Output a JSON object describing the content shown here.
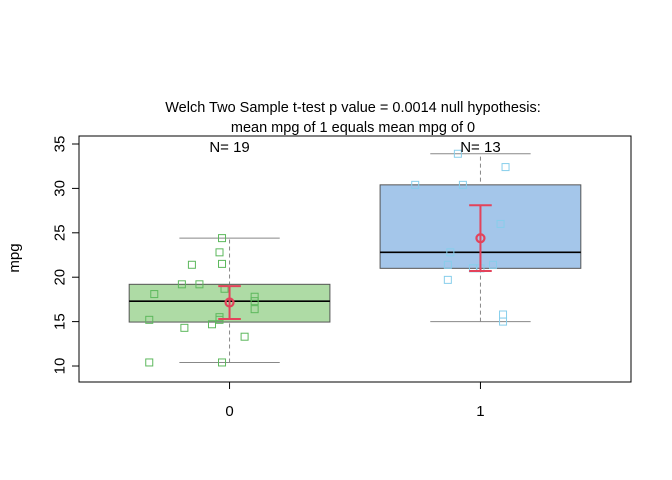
{
  "chart_data": {
    "type": "box",
    "title_line1": "Welch Two Sample t-test  p value =  0.0014  null hypothesis:",
    "title_line2": "mean mpg of  1 equals mean mpg of  0",
    "xlabel": "",
    "ylabel": "mpg",
    "categories": [
      "0",
      "1"
    ],
    "ylim": [
      8.2,
      35.9
    ],
    "yticks": [
      10,
      15,
      20,
      25,
      30,
      35
    ],
    "groups": [
      {
        "name": "0",
        "n_label": "N= 19",
        "box_color": "#aedba5",
        "point_color": "#5cb85c",
        "min": 10.4,
        "q1": 14.95,
        "median": 17.3,
        "q3": 19.2,
        "max": 24.4,
        "mean": 17.15,
        "ci_low": 15.3,
        "ci_high": 19.0,
        "points": [
          {
            "x": -0.03,
            "y": 24.4
          },
          {
            "x": -0.04,
            "y": 22.8
          },
          {
            "x": -0.03,
            "y": 21.5
          },
          {
            "x": -0.15,
            "y": 21.4
          },
          {
            "x": -0.19,
            "y": 19.2
          },
          {
            "x": -0.02,
            "y": 18.7
          },
          {
            "x": -0.3,
            "y": 18.1
          },
          {
            "x": 0.1,
            "y": 17.8
          },
          {
            "x": 0.1,
            "y": 17.3
          },
          {
            "x": 0.1,
            "y": 16.4
          },
          {
            "x": -0.04,
            "y": 15.5
          },
          {
            "x": -0.04,
            "y": 15.2
          },
          {
            "x": -0.32,
            "y": 15.2
          },
          {
            "x": -0.07,
            "y": 14.7
          },
          {
            "x": -0.18,
            "y": 14.3
          },
          {
            "x": 0.06,
            "y": 13.3
          },
          {
            "x": -0.32,
            "y": 10.4
          },
          {
            "x": -0.03,
            "y": 10.4
          },
          {
            "x": -0.12,
            "y": 19.2
          }
        ]
      },
      {
        "name": "1",
        "n_label": "N= 13",
        "box_color": "#a4c6ea",
        "point_color": "#87ceeb",
        "min": 15.0,
        "q1": 21.0,
        "median": 22.8,
        "q3": 30.4,
        "max": 33.9,
        "mean": 24.39,
        "ci_low": 20.7,
        "ci_high": 28.1,
        "points": [
          {
            "x": -0.09,
            "y": 33.9
          },
          {
            "x": 0.1,
            "y": 32.4
          },
          {
            "x": -0.07,
            "y": 30.4
          },
          {
            "x": -0.26,
            "y": 30.4
          },
          {
            "x": 0.08,
            "y": 26.0
          },
          {
            "x": -0.12,
            "y": 22.8
          },
          {
            "x": -0.13,
            "y": 21.4
          },
          {
            "x": 0.0,
            "y": 21.0
          },
          {
            "x": -0.03,
            "y": 21.0
          },
          {
            "x": -0.13,
            "y": 19.7
          },
          {
            "x": 0.09,
            "y": 15.8
          },
          {
            "x": 0.09,
            "y": 15.0
          },
          {
            "x": 0.05,
            "y": 21.4
          }
        ]
      }
    ],
    "style": {
      "mean_color": "#e3435b",
      "whisker_color": "#888888",
      "median_color": "#000000",
      "box_border_color": "#555555"
    }
  }
}
